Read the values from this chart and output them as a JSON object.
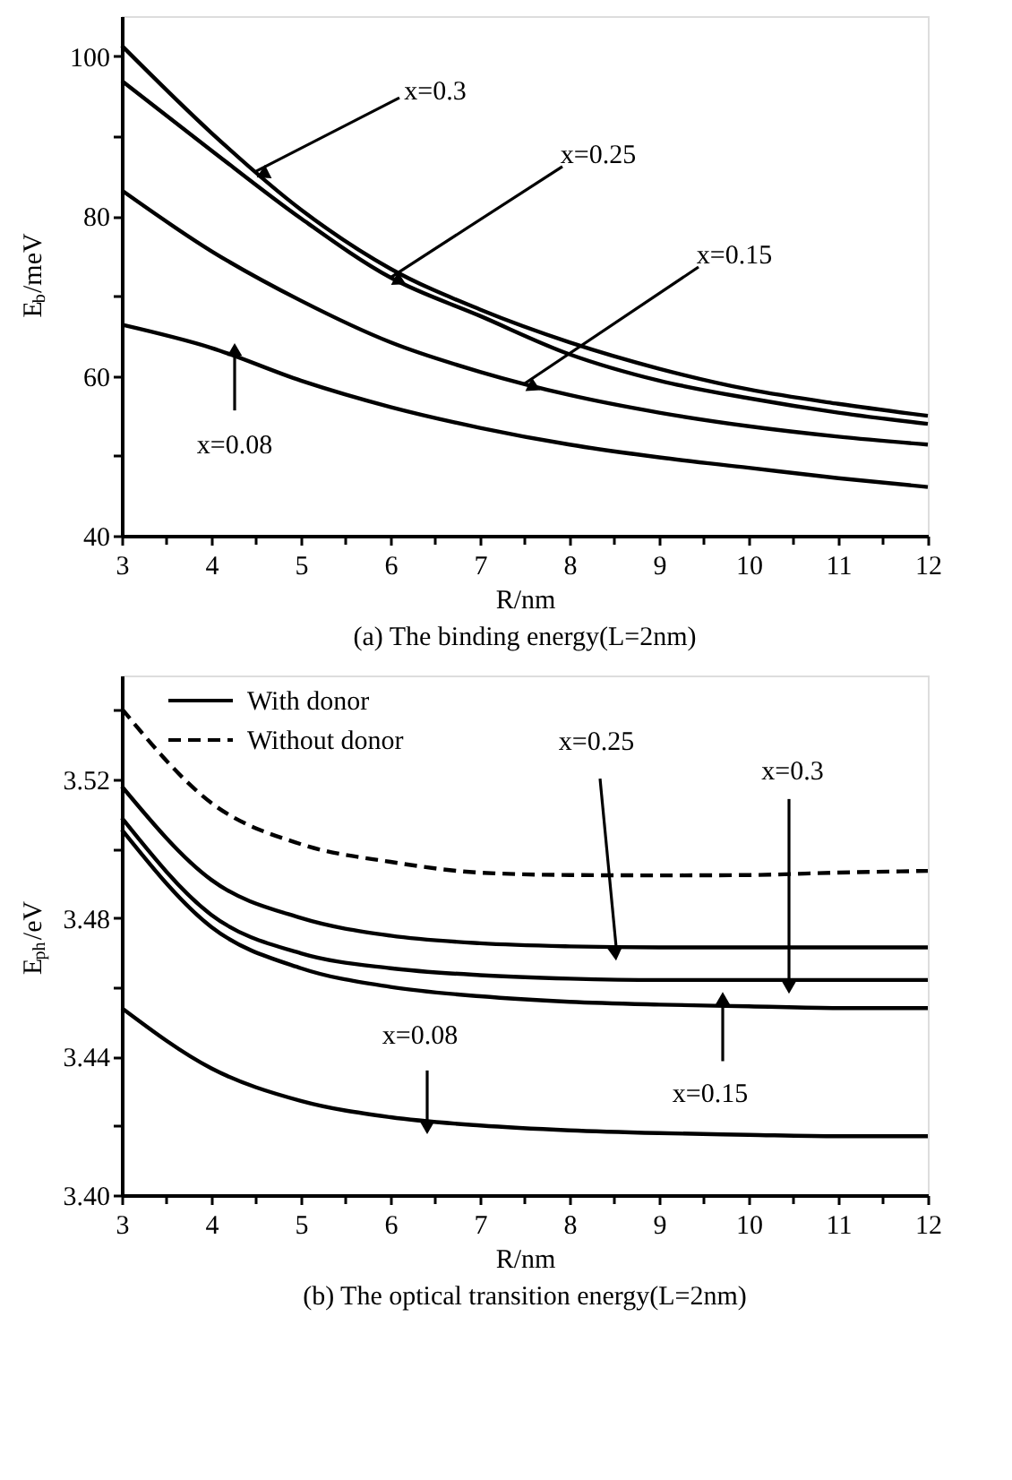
{
  "chart_data": [
    {
      "type": "line",
      "title": "(a) The binding energy(L=2nm)",
      "xlabel": "R/nm",
      "ylabel": "E$_{b}$/meV",
      "x": [
        3,
        4,
        5,
        6,
        7,
        8,
        9,
        10,
        11,
        12
      ],
      "series": [
        {
          "color": "#000000",
          "line_style": "solid",
          "values": [
            101.3,
            90.4,
            80.8,
            73.4,
            68.3,
            64.2,
            60.9,
            58.3,
            56.5,
            55.0
          ]
        },
        {
          "color": "#000000",
          "line_style": "solid",
          "values": [
            96.9,
            88.2,
            79.7,
            72.3,
            67.5,
            62.7,
            59.4,
            57.2,
            55.4,
            54.0
          ]
        },
        {
          "color": "#000000",
          "line_style": "solid",
          "values": [
            83.2,
            75.6,
            69.4,
            64.2,
            60.5,
            57.6,
            55.4,
            53.7,
            52.4,
            51.4
          ]
        },
        {
          "color": "#000000",
          "line_style": "solid",
          "values": [
            66.4,
            63.5,
            59.4,
            56.1,
            53.5,
            51.4,
            49.8,
            48.5,
            47.2,
            46.1
          ]
        }
      ],
      "annotations": [
        {
          "text": "x=0.3",
          "x": 4.5,
          "y": 85.6
        },
        {
          "text": "x=0.25",
          "x": 6,
          "y": 72.3
        },
        {
          "text": "x=0.15",
          "x": 7.5,
          "y": 59.05
        },
        {
          "text": "x=0.08",
          "x": 4.26,
          "y": 62.4
        }
      ],
      "xlim": [
        3,
        12
      ],
      "ylim": [
        40,
        105
      ],
      "xticks": [
        3,
        {
          "value": 3.5,
          "label": null
        },
        4,
        {
          "value": 4.5,
          "label": null
        },
        5,
        {
          "value": 5.5,
          "label": null
        },
        6,
        {
          "value": 6.5,
          "label": null
        },
        7,
        {
          "value": 7.5,
          "label": null
        },
        8,
        {
          "value": 8.5,
          "label": null
        },
        9,
        {
          "value": 9.5,
          "label": null
        },
        10,
        {
          "value": 10.5,
          "label": null
        },
        11,
        {
          "value": 11.5,
          "label": null
        },
        12
      ],
      "yticks": [
        40,
        {
          "value": 50,
          "label": null
        },
        60,
        {
          "value": 70,
          "label": null
        },
        80,
        {
          "value": 90,
          "label": null
        },
        100
      ],
      "grid": false,
      "legend": false,
      "marker": "none"
    },
    {
      "type": "line",
      "title": "(b) The optical transition energy(L=2nm)",
      "xlabel": "R/nm",
      "ylabel": "E$_{ph}$/eV",
      "x": [
        3,
        4,
        5,
        6,
        7,
        8,
        9,
        10,
        11,
        12
      ],
      "series": [
        {
          "name": "With donor",
          "color": "#000000",
          "line_style": "solid",
          "values": [
            3.518,
            3.491,
            3.48,
            3.4749,
            3.4727,
            3.4718,
            3.4715,
            3.4715,
            3.4715,
            3.4715
          ]
        },
        {
          "color": "#000000",
          "line_style": "solid",
          "values": [
            3.5089,
            3.4809,
            3.4698,
            3.4655,
            3.4635,
            3.4625,
            3.4621,
            3.4621,
            3.4621,
            3.4621
          ]
        },
        {
          "color": "#000000",
          "line_style": "solid",
          "values": [
            3.5055,
            3.4774,
            3.4655,
            3.4601,
            3.4574,
            3.4558,
            3.455,
            3.4545,
            3.454,
            3.454
          ]
        },
        {
          "color": "#000000",
          "line_style": "solid",
          "values": [
            3.454,
            3.4366,
            3.4272,
            3.4225,
            3.4201,
            3.4187,
            3.4179,
            3.4174,
            3.417,
            3.417
          ]
        },
        {
          "name": "Without donor",
          "color": "#000000",
          "line_style": "dashed",
          "values": [
            3.5404,
            3.5132,
            3.5013,
            3.4962,
            3.4931,
            3.4924,
            3.4923,
            3.4924,
            3.4931,
            3.4936
          ]
        }
      ],
      "annotations": [
        {
          "text": "x=0.25",
          "x": 8.52,
          "y": 3.4716
        },
        {
          "text": "x=0.3",
          "x": 10.45,
          "y": 3.4621
        },
        {
          "text": "x=0.15",
          "x": 9.71,
          "y": 3.4547
        },
        {
          "text": "x=0.08",
          "x": 6.41,
          "y": 3.4215
        }
      ],
      "xlim": [
        3,
        12
      ],
      "ylim": [
        3.4,
        3.55
      ],
      "xticks": [
        3,
        {
          "value": 3.5,
          "label": null
        },
        4,
        {
          "value": 4.5,
          "label": null
        },
        5,
        {
          "value": 5.5,
          "label": null
        },
        6,
        {
          "value": 6.5,
          "label": null
        },
        7,
        {
          "value": 7.5,
          "label": null
        },
        8,
        {
          "value": 8.5,
          "label": null
        },
        9,
        {
          "value": 9.5,
          "label": null
        },
        10,
        {
          "value": 10.5,
          "label": null
        },
        11,
        {
          "value": 11.5,
          "label": null
        },
        12
      ],
      "yticks": [
        {
          "value": 3.4,
          "label": "3.40"
        },
        {
          "value": 3.42,
          "label": null
        },
        3.44,
        {
          "value": 3.46,
          "label": null
        },
        3.48,
        {
          "value": 3.5,
          "label": null
        },
        3.52,
        {
          "value": 3.54,
          "label": null
        }
      ],
      "grid": false,
      "legend": "top left",
      "marker": "none"
    }
  ]
}
